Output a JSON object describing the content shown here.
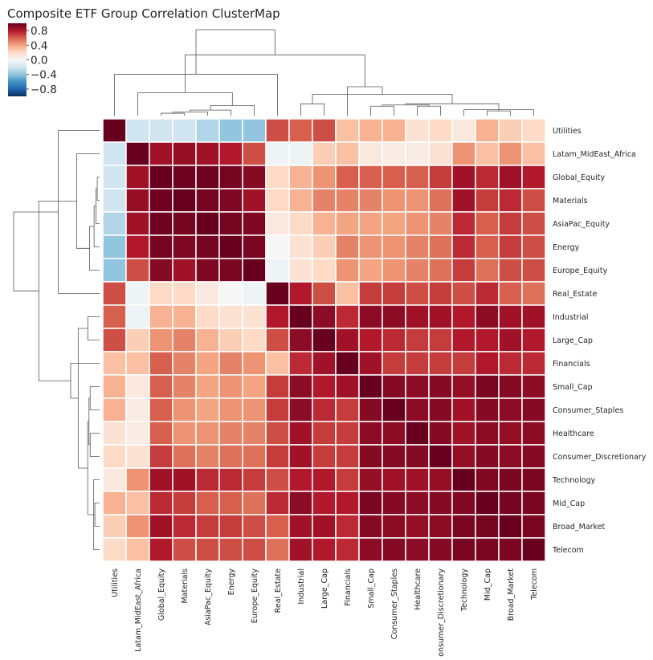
{
  "chart_data": {
    "type": "heatmap",
    "title": "Composite ETF Group Correlation ClusterMap",
    "colormap": "RdBu_r",
    "vmin": -1.0,
    "vmax": 1.0,
    "colorbar_ticks": [
      0.8,
      0.4,
      0.0,
      -0.4,
      -0.8
    ],
    "colorbar_tick_labels": [
      "0.8",
      "0.4",
      "0.0",
      "−0.4",
      "−0.8"
    ],
    "labels": [
      "Utilities",
      "Latam_MidEast_Africa",
      "Global_Equity",
      "Materials",
      "AsiaPac_Equity",
      "Energy",
      "Europe_Equity",
      "Real_Estate",
      "Industrial",
      "Large_Cap",
      "Financials",
      "Small_Cap",
      "Consumer_Staples",
      "Healthcare",
      "Consumer_Discretionary",
      "Technology",
      "Mid_Cap",
      "Broad_Market",
      "Telecom"
    ],
    "matrix": [
      [
        1.0,
        -0.2,
        -0.2,
        -0.2,
        -0.3,
        -0.4,
        -0.4,
        0.65,
        0.6,
        0.65,
        0.3,
        0.35,
        0.35,
        0.15,
        0.2,
        0.1,
        0.35,
        0.25,
        0.2
      ],
      [
        -0.2,
        1.0,
        0.85,
        0.88,
        0.85,
        0.8,
        0.65,
        -0.05,
        -0.05,
        0.25,
        0.3,
        0.1,
        0.08,
        0.08,
        0.15,
        0.45,
        0.3,
        0.45,
        0.3
      ],
      [
        -0.2,
        0.85,
        1.0,
        0.98,
        0.98,
        0.96,
        0.92,
        0.2,
        0.35,
        0.45,
        0.6,
        0.6,
        0.6,
        0.6,
        0.7,
        0.85,
        0.75,
        0.85,
        0.8
      ],
      [
        -0.2,
        0.88,
        0.98,
        1.0,
        0.96,
        0.94,
        0.85,
        0.2,
        0.35,
        0.5,
        0.5,
        0.5,
        0.45,
        0.45,
        0.55,
        0.85,
        0.7,
        0.75,
        0.65
      ],
      [
        -0.3,
        0.85,
        0.98,
        0.96,
        1.0,
        0.96,
        0.94,
        0.1,
        0.2,
        0.35,
        0.4,
        0.4,
        0.4,
        0.45,
        0.5,
        0.75,
        0.6,
        0.7,
        0.65
      ],
      [
        -0.4,
        0.8,
        0.96,
        0.94,
        0.96,
        1.0,
        0.95,
        0.0,
        0.15,
        0.25,
        0.5,
        0.45,
        0.45,
        0.5,
        0.55,
        0.75,
        0.6,
        0.7,
        0.65
      ],
      [
        -0.4,
        0.65,
        0.92,
        0.85,
        0.94,
        0.95,
        1.0,
        -0.05,
        0.15,
        0.2,
        0.45,
        0.4,
        0.45,
        0.5,
        0.55,
        0.7,
        0.55,
        0.65,
        0.65
      ],
      [
        0.65,
        -0.05,
        0.2,
        0.2,
        0.1,
        0.0,
        -0.05,
        1.0,
        0.8,
        0.65,
        0.3,
        0.7,
        0.7,
        0.65,
        0.7,
        0.65,
        0.75,
        0.6,
        0.55
      ],
      [
        0.6,
        -0.05,
        0.35,
        0.35,
        0.2,
        0.15,
        0.15,
        0.8,
        1.0,
        0.9,
        0.75,
        0.9,
        0.9,
        0.85,
        0.85,
        0.8,
        0.9,
        0.85,
        0.85
      ],
      [
        0.65,
        0.25,
        0.45,
        0.5,
        0.35,
        0.25,
        0.2,
        0.65,
        0.9,
        1.0,
        0.85,
        0.8,
        0.75,
        0.7,
        0.7,
        0.8,
        0.8,
        0.85,
        0.8
      ],
      [
        0.3,
        0.3,
        0.6,
        0.5,
        0.4,
        0.5,
        0.45,
        0.3,
        0.75,
        0.85,
        1.0,
        0.85,
        0.7,
        0.7,
        0.7,
        0.7,
        0.8,
        0.75,
        0.75
      ],
      [
        0.35,
        0.1,
        0.6,
        0.5,
        0.4,
        0.45,
        0.4,
        0.7,
        0.9,
        0.8,
        0.85,
        1.0,
        0.92,
        0.9,
        0.92,
        0.88,
        0.95,
        0.92,
        0.9
      ],
      [
        0.35,
        0.08,
        0.6,
        0.45,
        0.4,
        0.45,
        0.45,
        0.7,
        0.9,
        0.75,
        0.7,
        0.92,
        1.0,
        0.9,
        0.92,
        0.85,
        0.92,
        0.9,
        0.92
      ],
      [
        0.15,
        0.08,
        0.6,
        0.45,
        0.45,
        0.5,
        0.5,
        0.65,
        0.85,
        0.7,
        0.7,
        0.9,
        0.9,
        1.0,
        0.92,
        0.85,
        0.9,
        0.88,
        0.9
      ],
      [
        0.2,
        0.15,
        0.7,
        0.55,
        0.5,
        0.55,
        0.55,
        0.7,
        0.85,
        0.7,
        0.7,
        0.92,
        0.92,
        0.92,
        1.0,
        0.88,
        0.92,
        0.9,
        0.92
      ],
      [
        0.1,
        0.45,
        0.85,
        0.85,
        0.75,
        0.75,
        0.7,
        0.65,
        0.8,
        0.8,
        0.7,
        0.88,
        0.85,
        0.85,
        0.88,
        1.0,
        0.93,
        0.95,
        0.95
      ],
      [
        0.35,
        0.3,
        0.75,
        0.7,
        0.6,
        0.6,
        0.55,
        0.75,
        0.9,
        0.8,
        0.8,
        0.95,
        0.92,
        0.9,
        0.92,
        0.93,
        1.0,
        0.96,
        0.95
      ],
      [
        0.25,
        0.45,
        0.85,
        0.75,
        0.7,
        0.7,
        0.65,
        0.6,
        0.85,
        0.85,
        0.75,
        0.92,
        0.9,
        0.88,
        0.9,
        0.95,
        0.96,
        1.0,
        0.95
      ],
      [
        0.2,
        0.3,
        0.8,
        0.65,
        0.65,
        0.65,
        0.65,
        0.55,
        0.85,
        0.8,
        0.75,
        0.9,
        0.92,
        0.9,
        0.92,
        0.95,
        0.95,
        0.95,
        1.0
      ]
    ],
    "dendrogram_order": "rows and columns share the same leaf order"
  }
}
